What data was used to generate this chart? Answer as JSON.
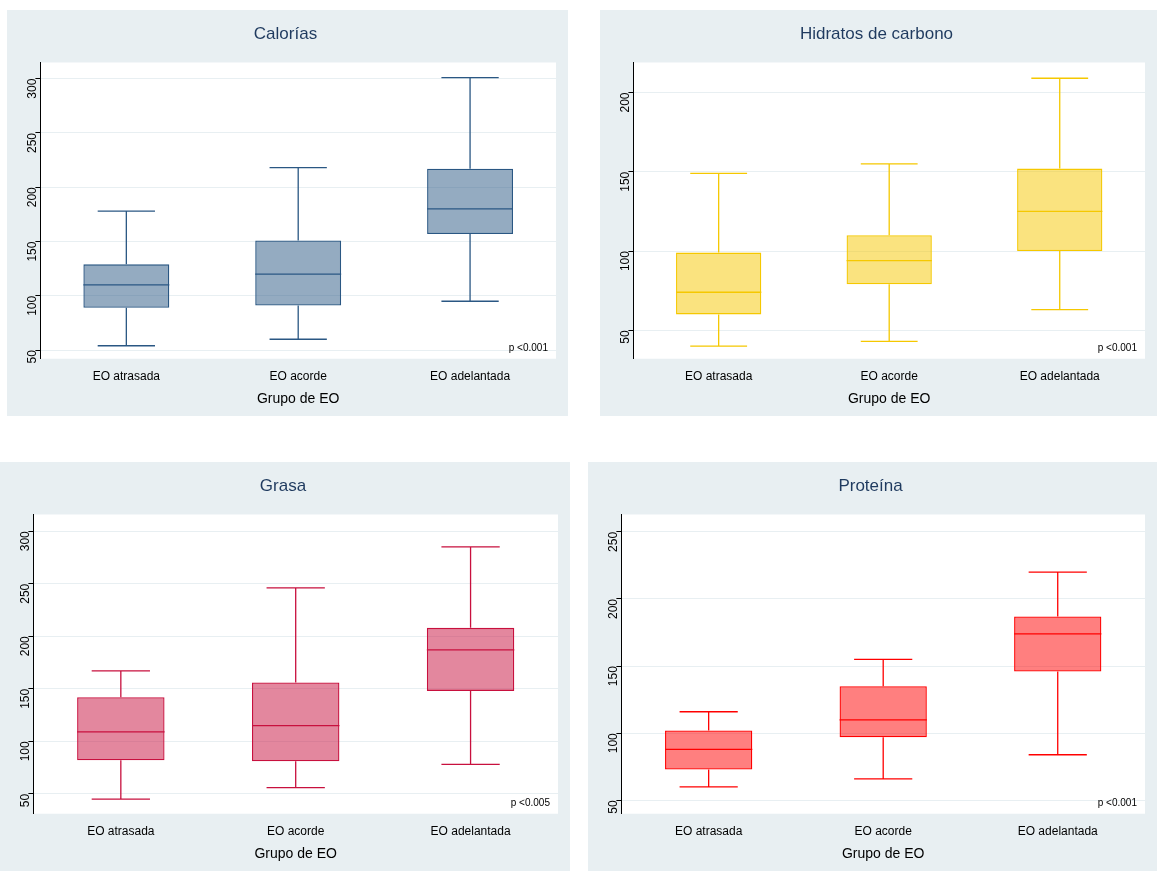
{
  "chart_data": [
    {
      "type": "box",
      "title": "Calorías",
      "xlabel": "Grupo de EO",
      "categories": [
        "EO atrasada",
        "EO acorde",
        "EO adelantada"
      ],
      "color": "#2a5783",
      "boxes": [
        {
          "low": 54,
          "q1": 89,
          "median": 110,
          "q3": 129,
          "high": 178
        },
        {
          "low": 60,
          "q1": 91,
          "median": 120,
          "q3": 151,
          "high": 218
        },
        {
          "low": 95,
          "q1": 157,
          "median": 180,
          "q3": 217,
          "high": 301
        }
      ],
      "ylim": [
        42,
        315
      ],
      "yticks": [
        50,
        100,
        150,
        200,
        250,
        300
      ],
      "grid": "y",
      "legend": false,
      "annotations": [
        "p <0.001"
      ]
    },
    {
      "type": "box",
      "title": "Hidratos de carbono",
      "xlabel": "Grupo de EO",
      "categories": [
        "EO atrasada",
        "EO acorde",
        "EO adelantada"
      ],
      "color": "#f5c800",
      "boxes": [
        {
          "low": 40,
          "q1": 60,
          "median": 74,
          "q3": 99,
          "high": 149
        },
        {
          "low": 43,
          "q1": 79,
          "median": 94,
          "q3": 110,
          "high": 155
        },
        {
          "low": 63,
          "q1": 100,
          "median": 125,
          "q3": 152,
          "high": 209
        }
      ],
      "ylim": [
        32,
        219
      ],
      "yticks": [
        50,
        100,
        150,
        200
      ],
      "grid": "y",
      "legend": false,
      "annotations": [
        "p <0.001"
      ]
    },
    {
      "type": "box",
      "title": "Grasa",
      "xlabel": "Grupo de EO",
      "categories": [
        "EO atrasada",
        "EO acorde",
        "EO adelantada"
      ],
      "color": "#c8103e",
      "boxes": [
        {
          "low": 45,
          "q1": 82,
          "median": 109,
          "q3": 142,
          "high": 167
        },
        {
          "low": 56,
          "q1": 81,
          "median": 115,
          "q3": 156,
          "high": 246
        },
        {
          "low": 78,
          "q1": 148,
          "median": 187,
          "q3": 208,
          "high": 285
        }
      ],
      "ylim": [
        31,
        316
      ],
      "yticks": [
        50,
        100,
        150,
        200,
        250,
        300
      ],
      "grid": "y",
      "legend": false,
      "annotations": [
        "p <0.005"
      ]
    },
    {
      "type": "box",
      "title": "Proteína",
      "xlabel": "Grupo de EO",
      "categories": [
        "EO atrasada",
        "EO acorde",
        "EO adelantada"
      ],
      "color": "#ff0000",
      "boxes": [
        {
          "low": 60,
          "q1": 73,
          "median": 88,
          "q3": 102,
          "high": 116
        },
        {
          "low": 66,
          "q1": 97,
          "median": 110,
          "q3": 135,
          "high": 155
        },
        {
          "low": 84,
          "q1": 146,
          "median": 174,
          "q3": 187,
          "high": 220
        }
      ],
      "ylim": [
        40,
        263
      ],
      "yticks": [
        50,
        100,
        150,
        200,
        250
      ],
      "grid": "y",
      "legend": false,
      "annotations": [
        "p <0.001"
      ]
    }
  ]
}
